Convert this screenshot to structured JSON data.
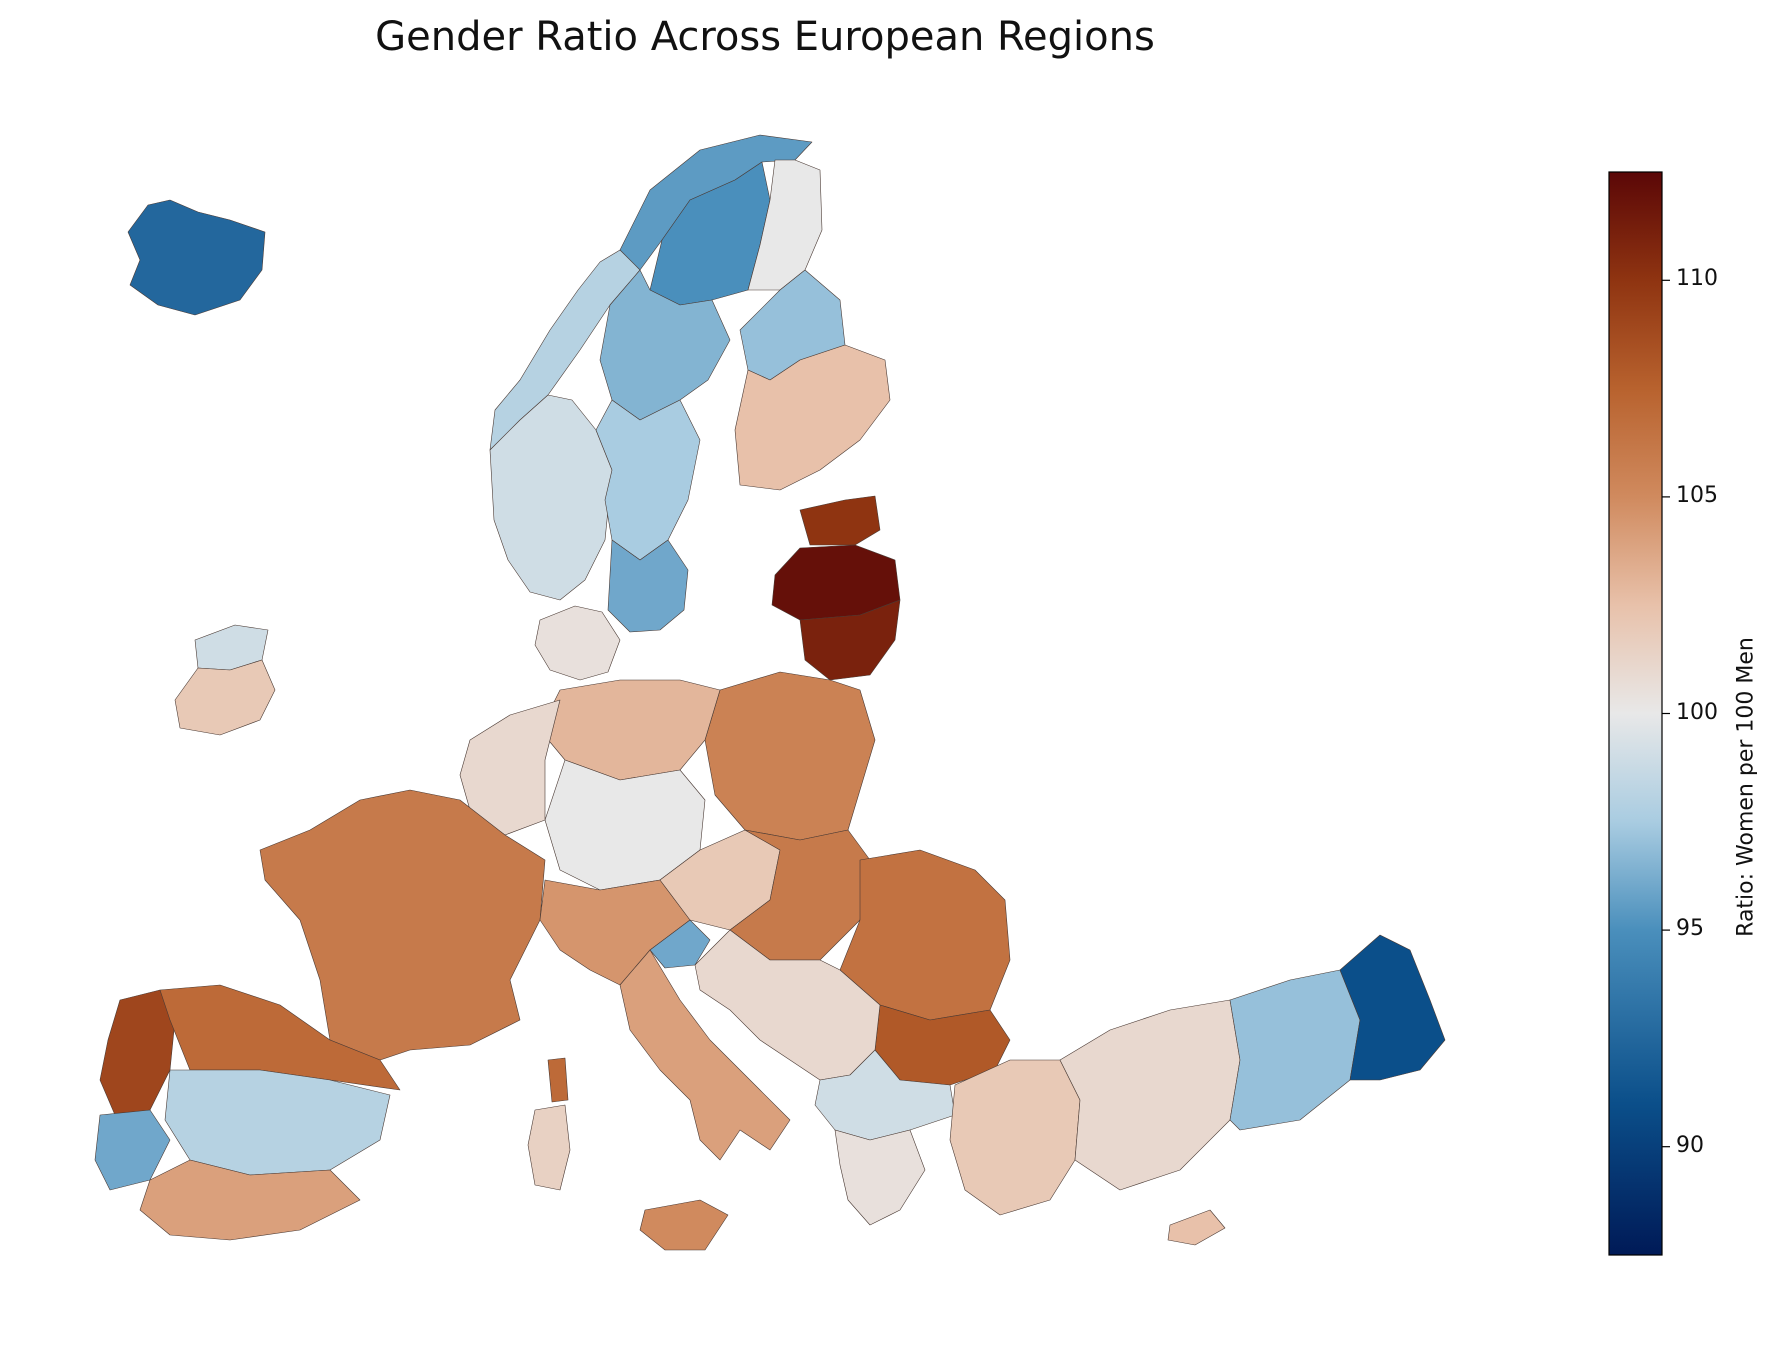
{
  "title": "Gender Ratio Across European Regions",
  "colorbar": {
    "label": "Ratio: Women per 100 Men",
    "min": 87.5,
    "max": 112.5,
    "ticks": [
      90,
      95,
      100,
      105,
      110
    ],
    "tick_labels": [
      "90",
      "95",
      "100",
      "105",
      "110"
    ],
    "colormap_stops": [
      {
        "value": 87.5,
        "color": "#001a57"
      },
      {
        "value": 91,
        "color": "#0b4f8a"
      },
      {
        "value": 95,
        "color": "#4a8fbc"
      },
      {
        "value": 97.5,
        "color": "#a9cce1"
      },
      {
        "value": 100,
        "color": "#e8e8e8"
      },
      {
        "value": 102.5,
        "color": "#e8c1aa"
      },
      {
        "value": 105,
        "color": "#d08a5e"
      },
      {
        "value": 107.5,
        "color": "#b8622e"
      },
      {
        "value": 110,
        "color": "#8f3411"
      },
      {
        "value": 112.5,
        "color": "#5b0707"
      }
    ]
  },
  "chart_data": {
    "type": "choropleth",
    "title": "Gender Ratio Across European Regions",
    "colorbar_label": "Ratio: Women per 100 Men",
    "colorbar_range": [
      87.5,
      112.5
    ],
    "regions": [
      {
        "area": "Iceland",
        "value": 92.5
      },
      {
        "area": "Norway (north)",
        "value": 95.5
      },
      {
        "area": "Norway (west coast)",
        "value": 98
      },
      {
        "area": "Norway (south)",
        "value": 99
      },
      {
        "area": "Sweden (Norrbotten)",
        "value": 95
      },
      {
        "area": "Sweden (north-central)",
        "value": 96.5
      },
      {
        "area": "Sweden (central)",
        "value": 97.5
      },
      {
        "area": "Sweden (south)",
        "value": 96
      },
      {
        "area": "Finland (Lapland)",
        "value": 100
      },
      {
        "area": "Finland (north)",
        "value": 97
      },
      {
        "area": "Finland (south)",
        "value": 102.5
      },
      {
        "area": "Denmark",
        "value": 100.5
      },
      {
        "area": "Estonia",
        "value": 110
      },
      {
        "area": "Latvia",
        "value": 112
      },
      {
        "area": "Lithuania",
        "value": 111
      },
      {
        "area": "Ireland (north-west)",
        "value": 99
      },
      {
        "area": "Ireland (south)",
        "value": 102
      },
      {
        "area": "Poland",
        "value": 105.5
      },
      {
        "area": "Germany (north)",
        "value": 103
      },
      {
        "area": "Germany (south)",
        "value": 100
      },
      {
        "area": "Netherlands/Belgium",
        "value": 101
      },
      {
        "area": "France",
        "value": 106
      },
      {
        "area": "Portugal (north)",
        "value": 109
      },
      {
        "area": "Portugal (south)",
        "value": 96
      },
      {
        "area": "Spain (north)",
        "value": 107
      },
      {
        "area": "Spain (central)",
        "value": 98
      },
      {
        "area": "Spain (south)",
        "value": 104
      },
      {
        "area": "Italy (north)",
        "value": 104.5
      },
      {
        "area": "Italy (south)",
        "value": 104
      },
      {
        "area": "Sardinia",
        "value": 101.5
      },
      {
        "area": "Corsica",
        "value": 107
      },
      {
        "area": "Sicily",
        "value": 105
      },
      {
        "area": "Czechia/Austria",
        "value": 102
      },
      {
        "area": "Slovenia",
        "value": 96
      },
      {
        "area": "Hungary/Slovakia",
        "value": 106
      },
      {
        "area": "Romania",
        "value": 106.5
      },
      {
        "area": "Bulgaria",
        "value": 108
      },
      {
        "area": "Croatia/Balkans",
        "value": 101
      },
      {
        "area": "Greece (north)",
        "value": 99
      },
      {
        "area": "Greece (south)",
        "value": 100.5
      },
      {
        "area": "Turkey (west)",
        "value": 102
      },
      {
        "area": "Turkey (central)",
        "value": 101
      },
      {
        "area": "Turkey (east)",
        "value": 97
      },
      {
        "area": "Turkey (far east)",
        "value": 91
      },
      {
        "area": "Cyprus",
        "value": 102.5
      }
    ]
  }
}
